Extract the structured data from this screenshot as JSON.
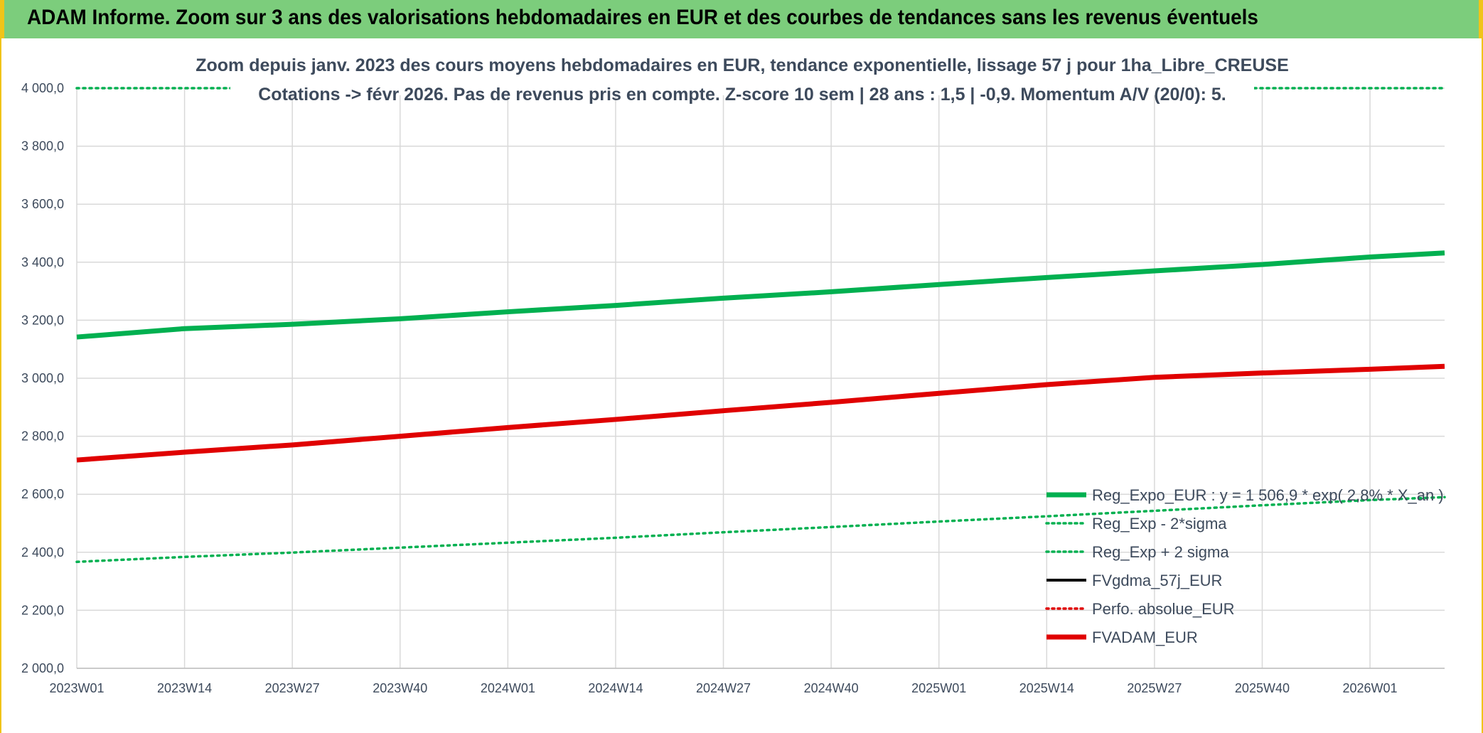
{
  "header": {
    "title": "ADAM Informe. Zoom sur 3 ans des valorisations hebdomadaires en EUR et des courbes de tendances sans les revenus éventuels"
  },
  "chart_data": {
    "type": "line",
    "title_line1": "Zoom depuis janv. 2023 des cours moyens hebdomadaires en EUR, tendance exponentielle, lissage 57 j pour 1ha_Libre_CREUSE",
    "title_line2": "Cotations -> févr 2026. Pas de revenus pris en compte. Z-score 10 sem | 28 ans : 1,5 | -0,9. Momentum A/V (20/0): 5.",
    "xlabel": "",
    "ylabel": "",
    "ylim": [
      2000,
      4000
    ],
    "yticks": [
      "2 000,0",
      "2 200,0",
      "2 400,0",
      "2 600,0",
      "2 800,0",
      "3 000,0",
      "3 200,0",
      "3 400,0",
      "3 600,0",
      "3 800,0",
      "4 000,0"
    ],
    "ytick_values": [
      2000,
      2200,
      2400,
      2600,
      2800,
      3000,
      3200,
      3400,
      3600,
      3800,
      4000
    ],
    "x_categories": [
      "2023W01",
      "2023W14",
      "2023W27",
      "2023W40",
      "2024W01",
      "2024W14",
      "2024W27",
      "2024W40",
      "2025W01",
      "2025W14",
      "2025W27",
      "2025W40",
      "2026W01"
    ],
    "x_range_weeks": [
      0,
      165
    ],
    "grid": true,
    "legend_position": "bottom-right",
    "series": [
      {
        "name": "Reg_Expo_EUR : y = 1 506,9 * exp( 2,8% * X_an )",
        "color": "#00b050",
        "style": "solid-thick",
        "x": [
          0,
          13,
          26,
          39,
          52,
          65,
          78,
          91,
          104,
          117,
          130,
          143,
          156,
          165
        ],
        "values": [
          3142,
          3171,
          3186,
          3205,
          3229,
          3251,
          3276,
          3298,
          3323,
          3347,
          3370,
          3392,
          3418,
          3432
        ]
      },
      {
        "name": "Reg_Exp - 2*sigma",
        "color": "#00b050",
        "style": "dotted",
        "x": [
          0,
          13,
          26,
          39,
          52,
          65,
          78,
          91,
          104,
          117,
          130,
          143,
          156,
          165
        ],
        "values": [
          2367,
          2384,
          2399,
          2416,
          2433,
          2450,
          2469,
          2487,
          2506,
          2524,
          2543,
          2562,
          2580,
          2590
        ]
      },
      {
        "name": "Reg_Exp + 2 sigma",
        "color": "#00b050",
        "style": "dotted",
        "x": [
          0,
          13,
          26,
          39,
          52,
          65,
          78,
          91,
          104,
          117,
          130,
          143,
          156,
          165
        ],
        "values": [
          4000,
          4000,
          4000,
          4000,
          4000,
          4000,
          4000,
          4000,
          4000,
          4000,
          4000,
          4000,
          4000,
          4000
        ]
      },
      {
        "name": "FVgdma_57j_EUR",
        "color": "#000000",
        "style": "solid",
        "x": [],
        "values": []
      },
      {
        "name": "Perfo. absolue_EUR",
        "color": "#e00000",
        "style": "dotted",
        "x": [],
        "values": []
      },
      {
        "name": "FVADAM_EUR",
        "color": "#e00000",
        "style": "solid-thick",
        "x": [
          0,
          13,
          26,
          39,
          52,
          65,
          78,
          91,
          104,
          117,
          130,
          143,
          156,
          165
        ],
        "values": [
          2718,
          2745,
          2770,
          2800,
          2830,
          2858,
          2888,
          2917,
          2948,
          2978,
          3003,
          3018,
          3031,
          3041
        ]
      }
    ]
  }
}
